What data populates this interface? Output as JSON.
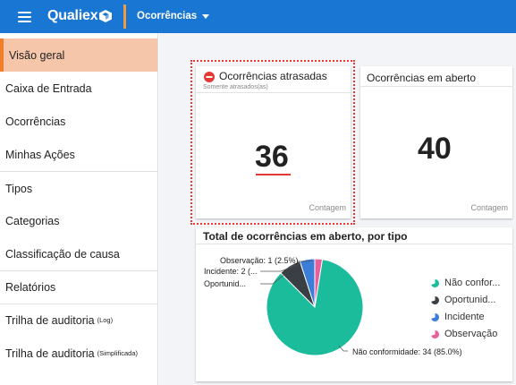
{
  "app": {
    "brand": "Qualiex",
    "module": "Ocorrências"
  },
  "sidebar": {
    "items": [
      {
        "label": "Visão geral",
        "active": true
      },
      {
        "label": "Caixa de Entrada"
      },
      {
        "label": "Ocorrências"
      },
      {
        "label": "Minhas Ações"
      },
      {
        "label": "Tipos"
      },
      {
        "label": "Categorias"
      },
      {
        "label": "Classificação de causa"
      },
      {
        "label": "Relatórios"
      },
      {
        "label": "Trilha de auditoria",
        "suffix": "(Log)"
      },
      {
        "label": "Trilha de auditoria",
        "suffix": "(Simplificada)"
      }
    ]
  },
  "cards": {
    "late": {
      "title": "Ocorrências atrasadas",
      "subtitle": "Somente atrasados(as)",
      "value": "36",
      "footer": "Contagem"
    },
    "open": {
      "title": "Ocorrências em aberto",
      "value": "40",
      "footer": "Contagem"
    },
    "by_type": {
      "title": "Total de ocorrências em aberto, por tipo"
    }
  },
  "chart_data": {
    "type": "pie",
    "title": "Total de ocorrências em aberto, por tipo",
    "slices": [
      {
        "name": "Não conformidade",
        "value": 34,
        "percent": 85.0,
        "color": "#1abc9c",
        "legend": "Não confor...",
        "label": "Não conformidade: 34 (85.0%)"
      },
      {
        "name": "Oportunidade",
        "value": 3,
        "percent": 7.5,
        "color": "#3a3f44",
        "legend": "Oportunid...",
        "label": "Oportunid..."
      },
      {
        "name": "Incidente",
        "value": 2,
        "percent": 5.0,
        "color": "#3b7dd8",
        "legend": "Incidente",
        "label": "Incidente: 2 (..."
      },
      {
        "name": "Observação",
        "value": 1,
        "percent": 2.5,
        "color": "#e8609a",
        "legend": "Observação",
        "label": "Observação: 1 (2.5%)"
      }
    ],
    "legend_position": "right"
  },
  "colors": {
    "topbar": "#1976d2",
    "accent": "#f07e2a",
    "active_bg": "#f5c6a9",
    "danger": "#e53935"
  }
}
